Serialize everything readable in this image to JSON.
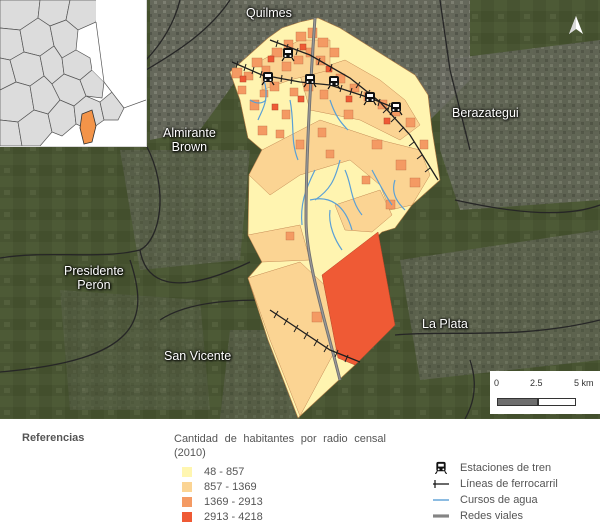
{
  "map": {
    "labels": {
      "quilmes": "Quilmes",
      "berazategui": "Berazategui",
      "almirante_brown": "Almirante\nBrown",
      "presidente_peron": "Presidente\nPerón",
      "san_vicente": "San Vicente",
      "la_plata": "La Plata"
    },
    "scale": {
      "t0": "0",
      "t1": "2.5",
      "t2": "5 km"
    },
    "north_arrow_icon": "north-arrow-icon"
  },
  "legend": {
    "title": "Referencias",
    "classes_title": "Cantidad de habitantes por radio censal (2010)",
    "classes": [
      {
        "label": "48 - 857",
        "color": "#fff6b0"
      },
      {
        "label": "857 - 1369",
        "color": "#fbd493"
      },
      {
        "label": "1369 - 2913",
        "color": "#f49a63"
      },
      {
        "label": "2913 - 4218",
        "color": "#ef5a35"
      }
    ],
    "symbols": [
      {
        "label": "Estaciones de tren",
        "icon": "train-station-icon"
      },
      {
        "label": "Líneas de ferrocarril",
        "icon": "railway-line-icon"
      },
      {
        "label": "Cursos de agua",
        "icon": "water-course-icon"
      },
      {
        "label": "Redes viales",
        "icon": "road-network-icon"
      }
    ]
  },
  "colors": {
    "satellite_dark": "#3f4a2e",
    "municipal_border": "#2b2b2b",
    "inset_fill": "#d9d9d9",
    "inset_highlight": "#f39449",
    "water": "#5aa0d6",
    "road": "#6f6f6f"
  }
}
